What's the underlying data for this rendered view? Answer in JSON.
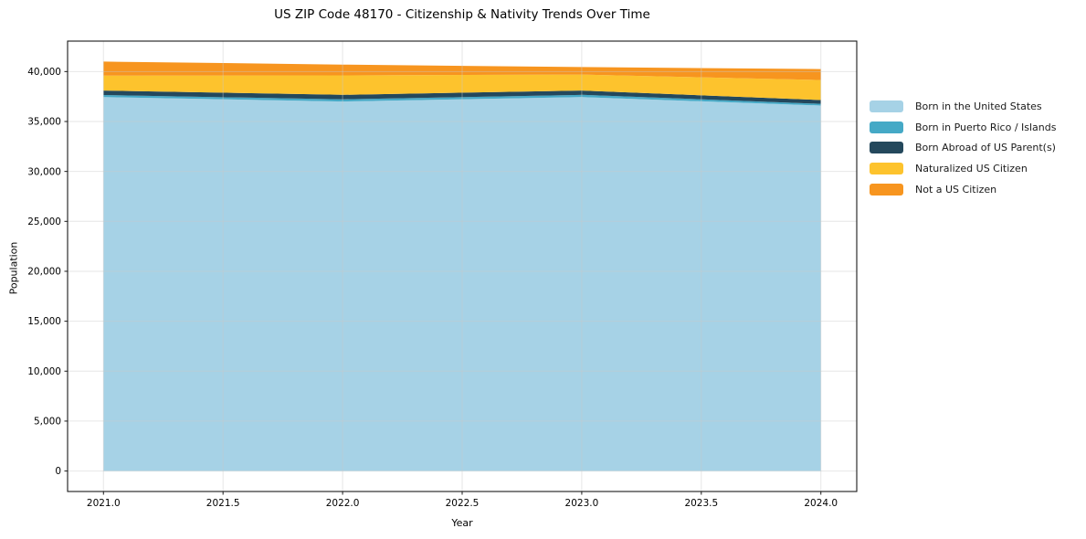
{
  "chart_data": {
    "type": "area",
    "stacked": true,
    "title": "US ZIP Code 48170 - Citizenship & Nativity Trends Over Time",
    "xlabel": "Year",
    "ylabel": "Population",
    "grid": true,
    "legend_position": "right",
    "x": [
      2021,
      2022,
      2023,
      2024
    ],
    "series": [
      {
        "name": "Born in the United States",
        "color": "#a6d2e6",
        "values": [
          37450,
          37000,
          37450,
          36600
        ]
      },
      {
        "name": "Born in Puerto Rico / Islands",
        "color": "#45a9c6",
        "values": [
          200,
          220,
          220,
          170
        ]
      },
      {
        "name": "Born Abroad of US Parent(s)",
        "color": "#24485c",
        "values": [
          450,
          450,
          430,
          380
        ]
      },
      {
        "name": "Naturalized US Citizen",
        "color": "#fdc32d",
        "values": [
          1500,
          1950,
          1600,
          2000
        ]
      },
      {
        "name": "Not a US Citizen",
        "color": "#f7951f",
        "values": [
          1400,
          1080,
          750,
          1100
        ]
      }
    ],
    "totals": [
      41000,
      40700,
      40450,
      40250
    ],
    "x_range": [
      2020.85,
      2024.15
    ],
    "y_range": [
      -2050,
      43050
    ],
    "x_ticks": [
      {
        "value": 2021.0,
        "label": "2021.0"
      },
      {
        "value": 2021.5,
        "label": "2021.5"
      },
      {
        "value": 2022.0,
        "label": "2022.0"
      },
      {
        "value": 2022.5,
        "label": "2022.5"
      },
      {
        "value": 2023.0,
        "label": "2023.0"
      },
      {
        "value": 2023.5,
        "label": "2023.5"
      },
      {
        "value": 2024.0,
        "label": "2024.0"
      }
    ],
    "y_ticks": [
      {
        "value": 0,
        "label": "0"
      },
      {
        "value": 5000,
        "label": "5,000"
      },
      {
        "value": 10000,
        "label": "10,000"
      },
      {
        "value": 15000,
        "label": "15,000"
      },
      {
        "value": 20000,
        "label": "20,000"
      },
      {
        "value": 25000,
        "label": "25,000"
      },
      {
        "value": 30000,
        "label": "30,000"
      },
      {
        "value": 35000,
        "label": "35,000"
      },
      {
        "value": 40000,
        "label": "40,000"
      }
    ],
    "colors": {
      "axis": "#1a1a1a",
      "grid": "#c9c9c9",
      "background": "#ffffff"
    }
  }
}
